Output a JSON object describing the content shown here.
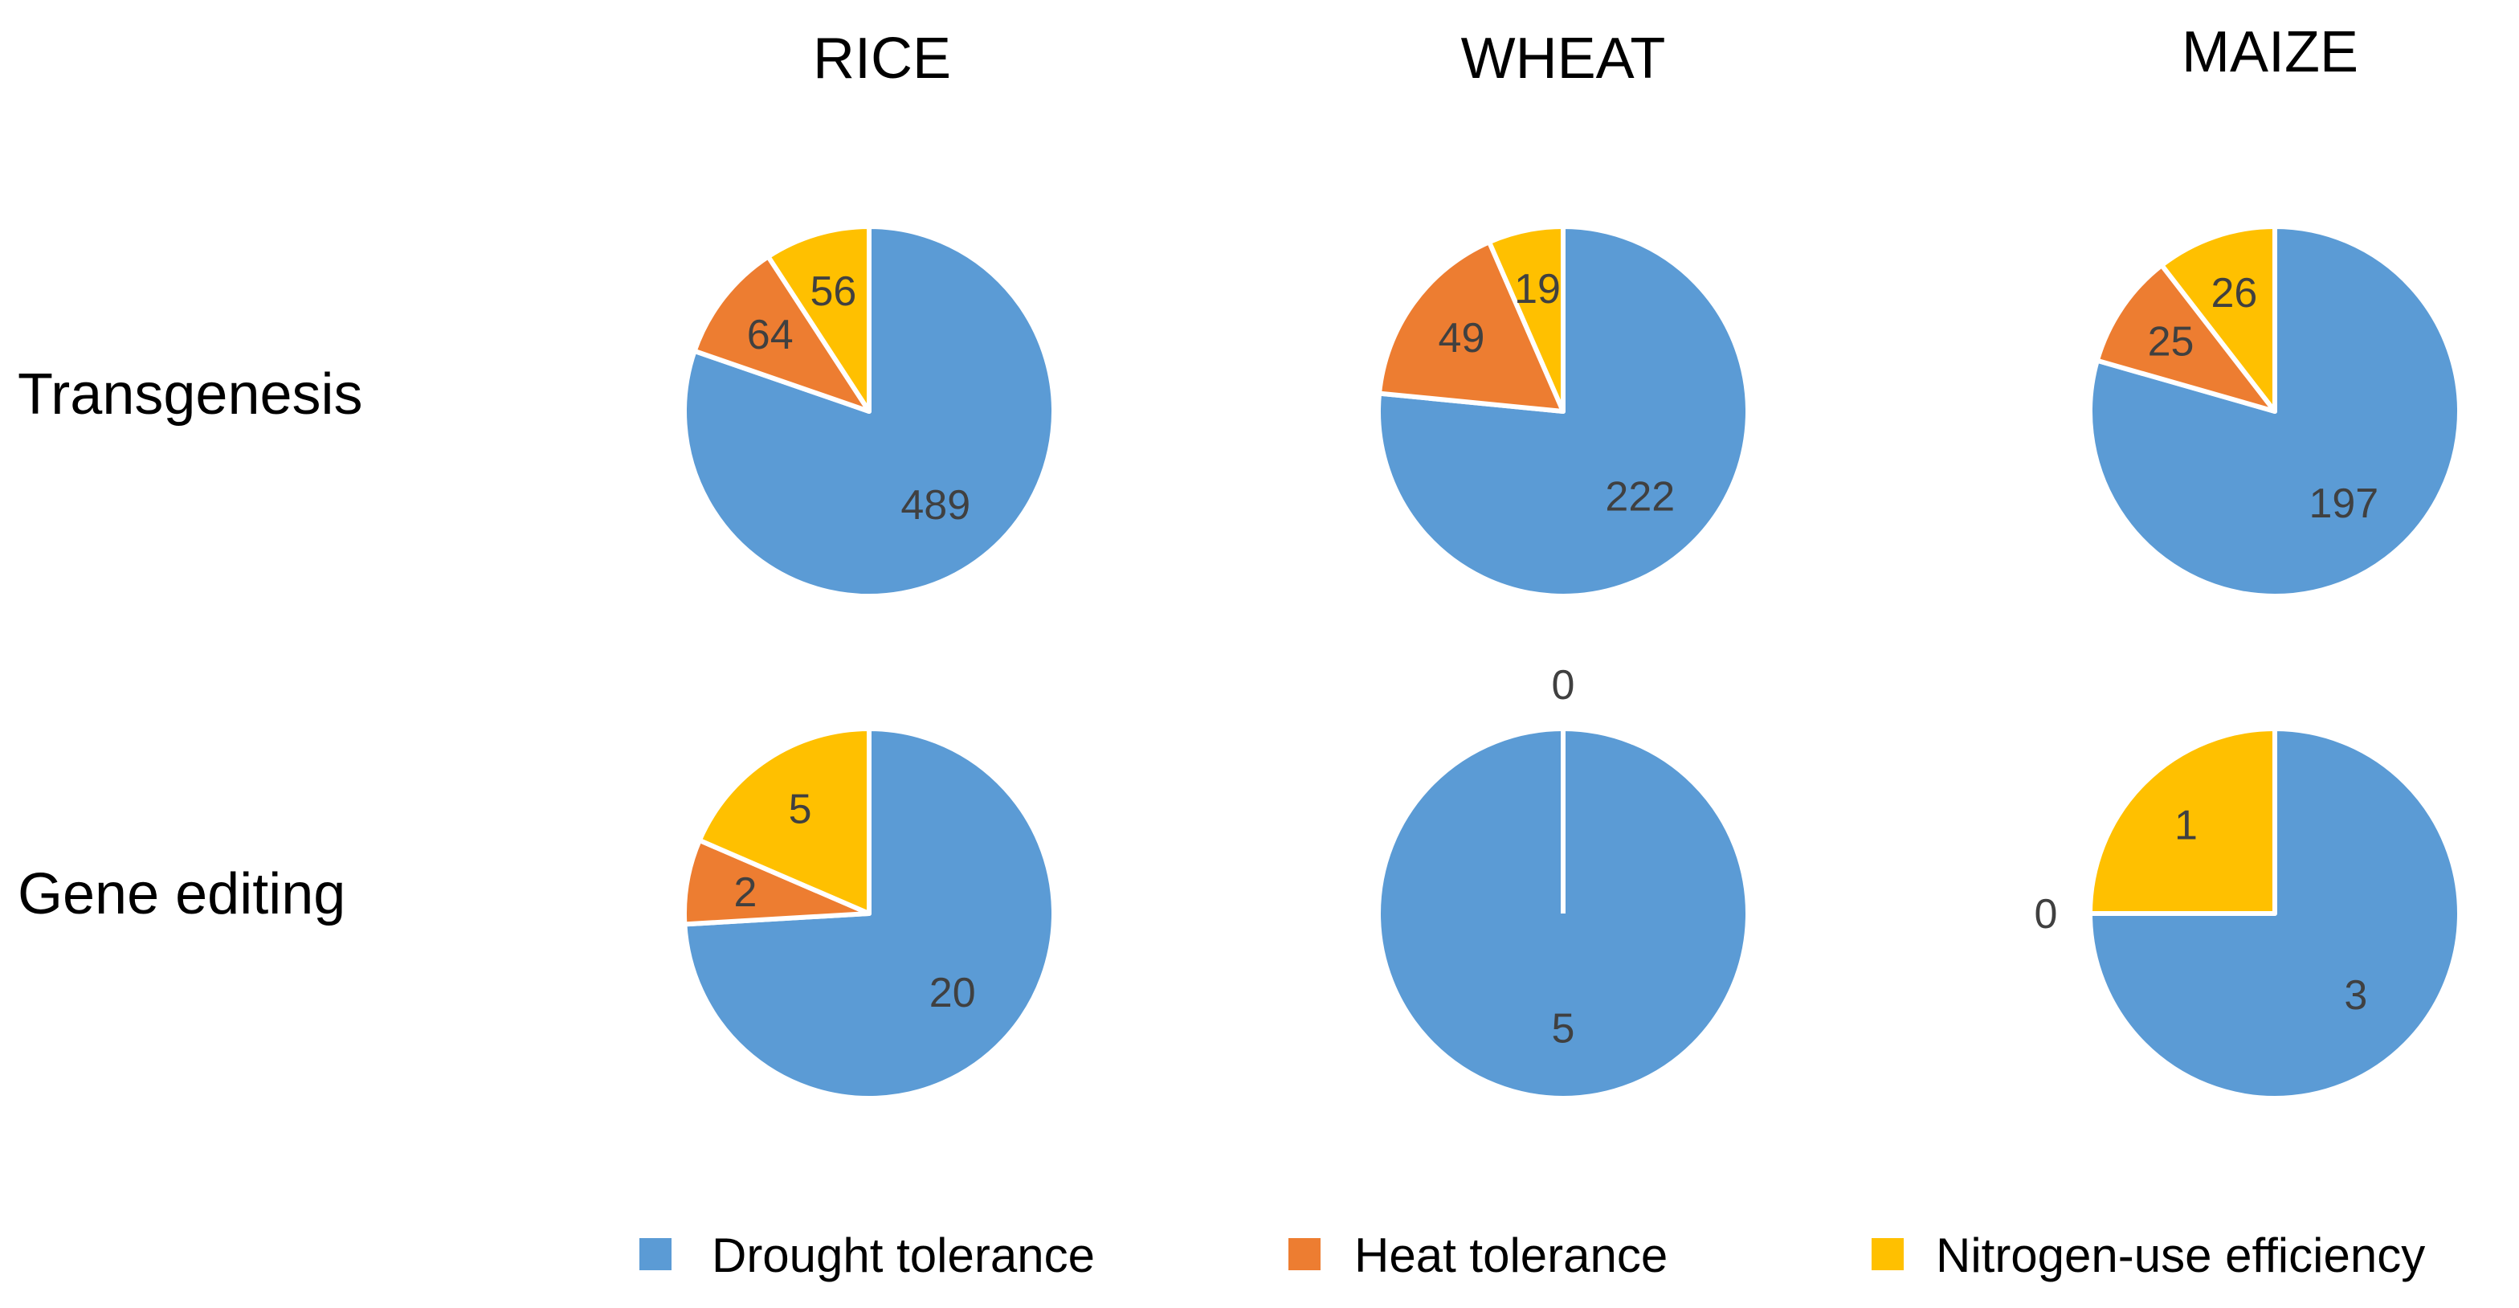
{
  "chart_data": {
    "type": "pie",
    "layout": "grid",
    "columns": [
      "RICE",
      "WHEAT",
      "MAIZE"
    ],
    "rows": [
      "Transgenesis",
      "Gene editing"
    ],
    "categories": [
      "Drought tolerance",
      "Heat tolerance",
      "Nitrogen-use efficiency"
    ],
    "colors": [
      "#5b9bd5",
      "#ed7d31",
      "#ffc000"
    ],
    "charts": [
      {
        "row": "Transgenesis",
        "column": "RICE",
        "values": [
          489,
          64,
          56
        ]
      },
      {
        "row": "Transgenesis",
        "column": "WHEAT",
        "values": [
          222,
          49,
          19
        ]
      },
      {
        "row": "Transgenesis",
        "column": "MAIZE",
        "values": [
          197,
          25,
          26
        ]
      },
      {
        "row": "Gene editing",
        "column": "RICE",
        "values": [
          20,
          2,
          5
        ]
      },
      {
        "row": "Gene editing",
        "column": "WHEAT",
        "values": [
          5,
          0,
          0
        ]
      },
      {
        "row": "Gene editing",
        "column": "MAIZE",
        "values": [
          3,
          0,
          1
        ]
      }
    ]
  }
}
